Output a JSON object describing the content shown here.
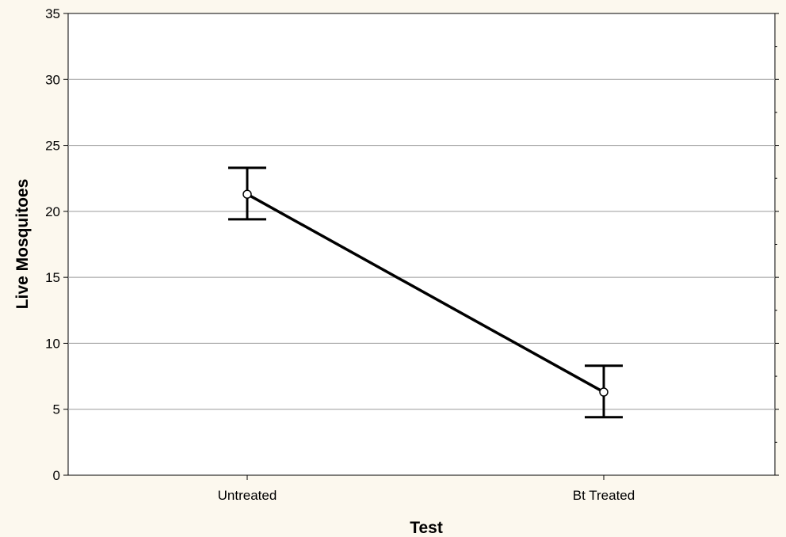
{
  "chart_data": {
    "type": "line",
    "title": "",
    "xlabel": "Test",
    "ylabel": "Live Mosquitoes",
    "categories": [
      "Untreated",
      "Bt Treated"
    ],
    "series": [
      {
        "values": [
          21.3,
          6.3
        ],
        "error_low": [
          19.4,
          4.4
        ],
        "error_high": [
          23.3,
          8.3
        ]
      }
    ],
    "ylim": [
      0,
      35
    ],
    "yticks": [
      0,
      5,
      10,
      15,
      20,
      25,
      30,
      35
    ],
    "grid": "horizontal",
    "legend": "none",
    "colors": {
      "background": "#fcf8ee",
      "plot_area": "#ffffff",
      "line": "#000000",
      "grid": "#9a9a9a",
      "marker_fill": "#ffffff"
    }
  }
}
